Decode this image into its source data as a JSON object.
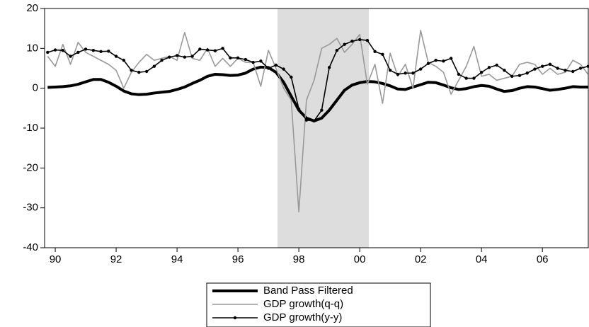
{
  "chart_data": {
    "type": "line",
    "x": [
      1989.75,
      1990,
      1990.25,
      1990.5,
      1990.75,
      1991,
      1991.25,
      1991.5,
      1991.75,
      1992,
      1992.25,
      1992.5,
      1992.75,
      1993,
      1993.25,
      1993.5,
      1993.75,
      1994,
      1994.25,
      1994.5,
      1994.75,
      1995,
      1995.25,
      1995.5,
      1995.75,
      1996,
      1996.25,
      1996.5,
      1996.75,
      1997,
      1997.25,
      1997.5,
      1997.75,
      1998,
      1998.25,
      1998.5,
      1998.75,
      1999,
      1999.25,
      1999.5,
      1999.75,
      2000,
      2000.25,
      2000.5,
      2000.75,
      2001,
      2001.25,
      2001.5,
      2001.75,
      2002,
      2002.25,
      2002.5,
      2002.75,
      2003,
      2003.25,
      2003.5,
      2003.75,
      2004,
      2004.25,
      2004.5,
      2004.75,
      2005,
      2005.25,
      2005.5,
      2005.75,
      2006,
      2006.25,
      2006.5,
      2006.75,
      2007,
      2007.25,
      2007.5
    ],
    "series": [
      {
        "name": "Band Pass Filtered",
        "color": "#000000",
        "width": 4,
        "markers": false,
        "values": [
          0.2,
          0.3,
          0.4,
          0.6,
          1.0,
          1.6,
          2.2,
          2.2,
          1.5,
          0.5,
          -0.7,
          -1.4,
          -1.6,
          -1.5,
          -1.2,
          -1.0,
          -0.8,
          -0.3,
          0.3,
          1.2,
          2.0,
          3.0,
          3.5,
          3.4,
          3.2,
          3.3,
          3.8,
          4.8,
          5.3,
          5.2,
          4.0,
          1.5,
          -2.0,
          -5.5,
          -7.5,
          -8.2,
          -7.5,
          -5.5,
          -3.0,
          -0.5,
          0.8,
          1.4,
          1.7,
          1.6,
          1.2,
          0.6,
          -0.2,
          -0.3,
          0.3,
          0.9,
          1.5,
          1.4,
          0.8,
          0.1,
          -0.3,
          -0.1,
          0.4,
          0.7,
          0.5,
          -0.2,
          -0.8,
          -0.6,
          0.0,
          0.4,
          0.3,
          -0.1,
          -0.5,
          -0.3,
          0.0,
          0.4,
          0.3,
          0.3
        ]
      },
      {
        "name": "GDP growth(q-q)",
        "color": "#999999",
        "width": 1.6,
        "markers": false,
        "values": [
          8,
          5.5,
          11,
          6,
          11.5,
          9,
          8,
          7,
          6,
          4.5,
          0,
          4,
          6.5,
          8.5,
          7,
          7.5,
          8,
          7,
          14,
          7.5,
          7,
          10,
          5.5,
          7.5,
          5.5,
          7.5,
          6.5,
          6.5,
          0.5,
          9.5,
          5,
          0,
          -3,
          -31,
          -3,
          2,
          10,
          11,
          12.5,
          9,
          11,
          13.5,
          1,
          6,
          -3.8,
          8.8,
          3,
          6,
          0,
          14.5,
          6.5,
          5.5,
          4,
          -1.5,
          2,
          5.5,
          10.5,
          3,
          3.5,
          2,
          2.5,
          3,
          6,
          6.5,
          6,
          3.5,
          5,
          3.5,
          4,
          7,
          6,
          3.5
        ]
      },
      {
        "name": "GDP growth(y-y)",
        "color": "#000000",
        "width": 1.6,
        "markers": true,
        "values": [
          9.0,
          9.6,
          9.5,
          8.0,
          9.0,
          9.8,
          9.5,
          9.2,
          9.3,
          8.0,
          7.0,
          4.5,
          4.0,
          4.2,
          5.5,
          7.0,
          7.8,
          8.2,
          7.8,
          8.0,
          9.8,
          9.6,
          9.4,
          10.0,
          7.6,
          7.6,
          7.2,
          6.5,
          6.8,
          5.0,
          5.8,
          4.8,
          2.8,
          -5.2,
          -8,
          -8.2,
          -5.5,
          5.2,
          9.5,
          11,
          11.8,
          12.2,
          12.0,
          9.2,
          8.5,
          4.5,
          3.5,
          3.8,
          3.8,
          4.8,
          6.2,
          7.0,
          6.8,
          7.5,
          3.5,
          2.5,
          2.5,
          4.0,
          5.2,
          5.8,
          4.5,
          3.0,
          3.2,
          3.8,
          4.8,
          5.5,
          6.0,
          5.0,
          4.5,
          4.2,
          5.0,
          5.5
        ]
      }
    ],
    "xlim": [
      1989.65,
      2007.53
    ],
    "xticks": [
      {
        "value": 1990,
        "label": "90"
      },
      {
        "value": 1992,
        "label": "92"
      },
      {
        "value": 1994,
        "label": "94"
      },
      {
        "value": 1996,
        "label": "96"
      },
      {
        "value": 1998,
        "label": "98"
      },
      {
        "value": 2000,
        "label": "00"
      },
      {
        "value": 2002,
        "label": "02"
      },
      {
        "value": 2004,
        "label": "04"
      },
      {
        "value": 2006,
        "label": "06"
      }
    ],
    "ylim": [
      -40,
      20
    ],
    "yticks": [
      -40,
      -30,
      -20,
      -10,
      0,
      10,
      20
    ],
    "shaded_region": [
      1997.3,
      2000.3
    ],
    "shade_color": "#dddddd",
    "legend": "bottom"
  }
}
